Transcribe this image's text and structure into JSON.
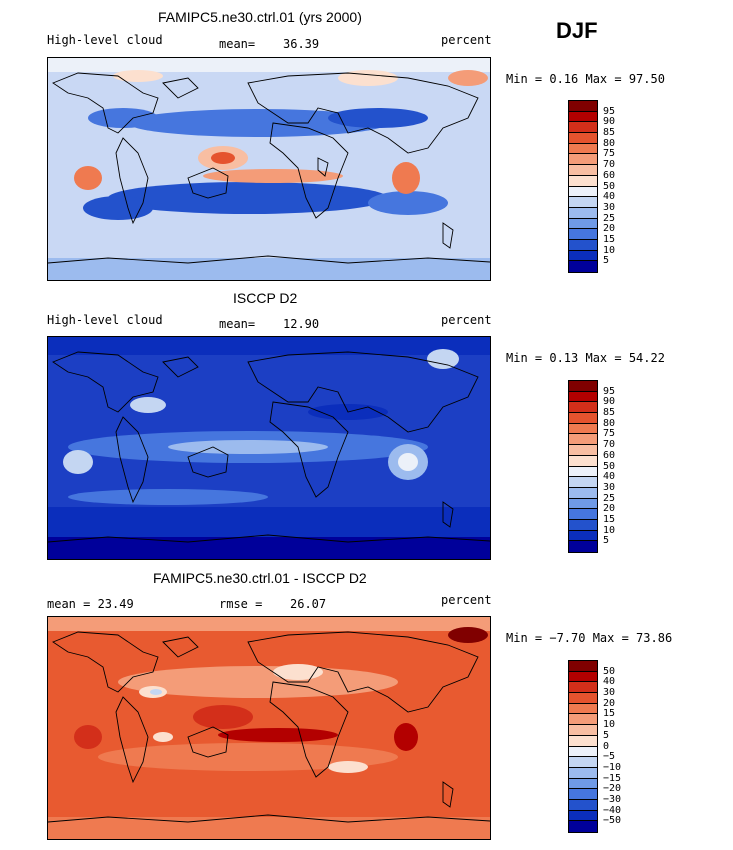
{
  "season": "DJF",
  "panels": [
    {
      "title": "FAMIPC5.ne30.ctrl.01 (yrs 2000)",
      "left_label": "High-level cloud",
      "stat1_label": "mean=",
      "stat1_value": "36.39",
      "units": "percent",
      "minmax": "Min =   0.16 Max =  97.50",
      "palette": "model",
      "colorbar_labels": [
        "95",
        "90",
        "85",
        "80",
        "75",
        "70",
        "60",
        "50",
        "40",
        "30",
        "25",
        "20",
        "15",
        "10",
        "5"
      ]
    },
    {
      "title": "ISCCP D2",
      "left_label": "High-level cloud",
      "stat1_label": "mean=",
      "stat1_value": "12.90",
      "units": "percent",
      "minmax": "Min =   0.13 Max =  54.22",
      "palette": "obs",
      "colorbar_labels": [
        "95",
        "90",
        "85",
        "80",
        "75",
        "70",
        "60",
        "50",
        "40",
        "30",
        "25",
        "20",
        "15",
        "10",
        "5"
      ]
    },
    {
      "title": "FAMIPC5.ne30.ctrl.01 - ISCCP D2",
      "left_label": "mean =   23.49",
      "stat1_label": "rmse =",
      "stat1_value": "26.07",
      "units": "percent",
      "minmax": "Min =  −7.70 Max =  73.86",
      "palette": "diff",
      "colorbar_labels": [
        "50",
        "40",
        "30",
        "20",
        "15",
        "10",
        "5",
        "0",
        "−5",
        "−10",
        "−15",
        "−20",
        "−30",
        "−40",
        "−50"
      ]
    }
  ],
  "colors": {
    "colorbar_16": [
      "#800000",
      "#b30000",
      "#d32f1a",
      "#e5532e",
      "#ef7a50",
      "#f49c78",
      "#f8bea2",
      "#fce0cf",
      "#ecf1f9",
      "#c4d6f2",
      "#9cbbee",
      "#6f9ae6",
      "#4676de",
      "#2352cc",
      "#0b2ebc",
      "#00009a"
    ],
    "map_base": {
      "model": "#c9d8f4",
      "obs": "#1c3fc4",
      "diff": "#e85a30"
    }
  }
}
